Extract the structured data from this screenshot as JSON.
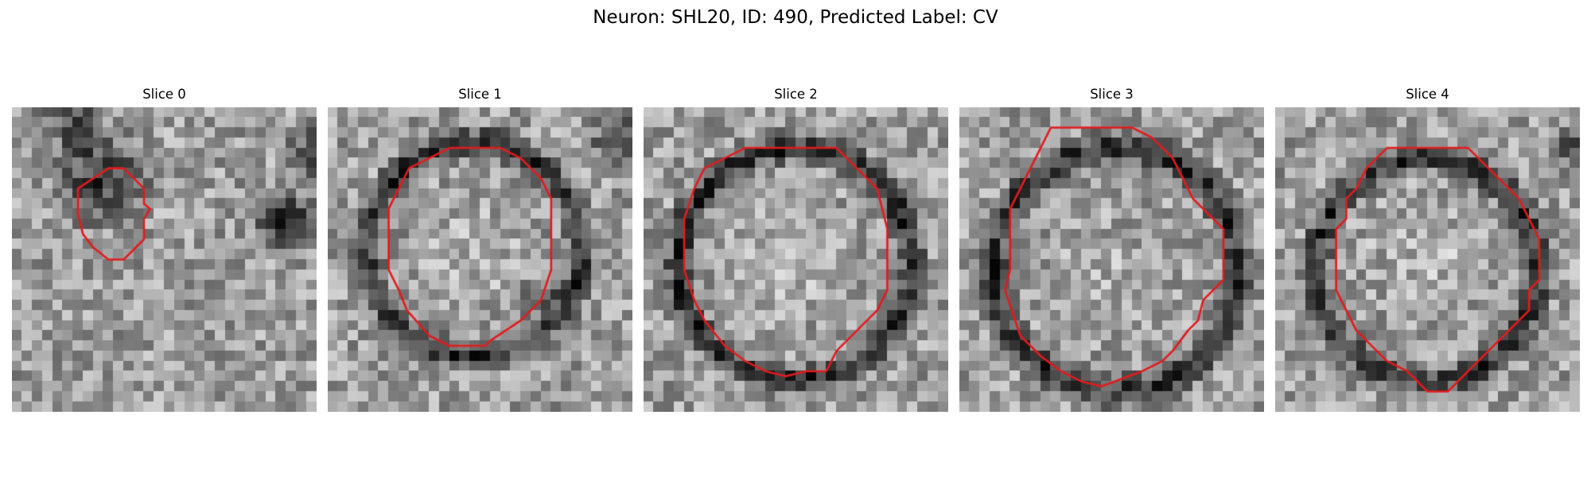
{
  "figure": {
    "title": "Neuron: SHL20, ID: 490, Predicted Label: CV"
  },
  "colors": {
    "contour": "#e31a1c",
    "background": "#ffffff"
  },
  "colormap": "gray",
  "panels": [
    {
      "title": "Slice 0",
      "seed": 11,
      "blobs": [
        {
          "c": [
            9,
            7
          ],
          "r": 6,
          "d": -0.45
        },
        {
          "c": [
            6,
            1.5
          ],
          "r": 4,
          "d": -0.35
        },
        {
          "c": [
            27,
            11
          ],
          "r": 3.8,
          "d": -0.55
        },
        {
          "c": [
            30,
            4.5
          ],
          "r": 3.5,
          "d": -0.5
        }
      ],
      "ring": null,
      "contour": [
        [
          9.5,
          6
        ],
        [
          11,
          6
        ],
        [
          13,
          8
        ],
        [
          13,
          9.5
        ],
        [
          13.6,
          10
        ],
        [
          13,
          11
        ],
        [
          13,
          13
        ],
        [
          11,
          15
        ],
        [
          9.5,
          15
        ],
        [
          8,
          13.8
        ],
        [
          7,
          12.5
        ],
        [
          6.5,
          10.5
        ],
        [
          6.5,
          8
        ]
      ]
    },
    {
      "title": "Slice 1",
      "seed": 23,
      "blobs": [
        {
          "c": [
            14.5,
            14
          ],
          "r": 6.5,
          "d": 0.1
        },
        {
          "c": [
            29,
            3
          ],
          "r": 4,
          "d": -0.4
        },
        {
          "c": [
            21,
            19
          ],
          "r": 3,
          "d": -0.2
        }
      ],
      "ring": {
        "c": [
          14.5,
          14
        ],
        "r": 10.5,
        "w": 2,
        "d": -0.45
      },
      "contour": [
        [
          10,
          5
        ],
        [
          12,
          4
        ],
        [
          17,
          4
        ],
        [
          19,
          5
        ],
        [
          21,
          7
        ],
        [
          22,
          9
        ],
        [
          22,
          16
        ],
        [
          21,
          19
        ],
        [
          19,
          21
        ],
        [
          16,
          23
        ],
        [
          15.5,
          23.5
        ],
        [
          12,
          23.5
        ],
        [
          10,
          22.5
        ],
        [
          7.8,
          20
        ],
        [
          7,
          18
        ],
        [
          6,
          16
        ],
        [
          6,
          10
        ],
        [
          7,
          8
        ],
        [
          8,
          6
        ]
      ]
    },
    {
      "title": "Slice 2",
      "seed": 37,
      "blobs": [
        {
          "c": [
            14.5,
            15
          ],
          "r": 7,
          "d": 0.1
        }
      ],
      "ring": {
        "c": [
          15,
          15.5
        ],
        "r": 11.5,
        "w": 2,
        "d": -0.5
      },
      "contour": [
        [
          8,
          5
        ],
        [
          10,
          4
        ],
        [
          19,
          4
        ],
        [
          21,
          6
        ],
        [
          23,
          8
        ],
        [
          24,
          12
        ],
        [
          24,
          18
        ],
        [
          23,
          20
        ],
        [
          21,
          22
        ],
        [
          19,
          24
        ],
        [
          18,
          26
        ],
        [
          16,
          26
        ],
        [
          14,
          26.5
        ],
        [
          12,
          26
        ],
        [
          10,
          25
        ],
        [
          8,
          23.5
        ],
        [
          6,
          21
        ],
        [
          5,
          19
        ],
        [
          4,
          16
        ],
        [
          4,
          11
        ],
        [
          5,
          8
        ],
        [
          6,
          6
        ]
      ]
    },
    {
      "title": "Slice 3",
      "seed": 49,
      "blobs": [
        {
          "c": [
            15,
            16
          ],
          "r": 8,
          "d": 0.05
        }
      ],
      "ring": {
        "c": [
          15.5,
          16
        ],
        "r": 12,
        "w": 2.2,
        "d": -0.45
      },
      "contour": [
        [
          9,
          2
        ],
        [
          17,
          2
        ],
        [
          19,
          3
        ],
        [
          21,
          5
        ],
        [
          22,
          7
        ],
        [
          23,
          9
        ],
        [
          26,
          12
        ],
        [
          26,
          17
        ],
        [
          24,
          19
        ],
        [
          23.5,
          21
        ],
        [
          22.5,
          22
        ],
        [
          21,
          24
        ],
        [
          20,
          25
        ],
        [
          18,
          26
        ],
        [
          14,
          27.5
        ],
        [
          12,
          27
        ],
        [
          10,
          26
        ],
        [
          8,
          24.5
        ],
        [
          6,
          22.5
        ],
        [
          5.5,
          21
        ],
        [
          4.5,
          18
        ],
        [
          5,
          16
        ],
        [
          5,
          10
        ],
        [
          6,
          8
        ],
        [
          7,
          6
        ],
        [
          8,
          4
        ]
      ]
    },
    {
      "title": "Slice 4",
      "seed": 61,
      "blobs": [
        {
          "c": [
            15,
            15
          ],
          "r": 7.5,
          "d": 0.1
        },
        {
          "c": [
            29,
            4
          ],
          "r": 3,
          "d": -0.3
        }
      ],
      "ring": {
        "c": [
          15,
          16
        ],
        "r": 11,
        "w": 2,
        "d": -0.45
      },
      "contour": [
        [
          11,
          4
        ],
        [
          19,
          4
        ],
        [
          21,
          6
        ],
        [
          23,
          8
        ],
        [
          24,
          9
        ],
        [
          25,
          11
        ],
        [
          26,
          13
        ],
        [
          26,
          17
        ],
        [
          25,
          18
        ],
        [
          25,
          20
        ],
        [
          24,
          21
        ],
        [
          22,
          23
        ],
        [
          20,
          25
        ],
        [
          18,
          27
        ],
        [
          17,
          28
        ],
        [
          15,
          28
        ],
        [
          14,
          27
        ],
        [
          13,
          26
        ],
        [
          11,
          25
        ],
        [
          9,
          23
        ],
        [
          8,
          22
        ],
        [
          7,
          20
        ],
        [
          6,
          18
        ],
        [
          6,
          12
        ],
        [
          7,
          11
        ],
        [
          7,
          9
        ],
        [
          8,
          8
        ],
        [
          9,
          6
        ]
      ]
    }
  ]
}
